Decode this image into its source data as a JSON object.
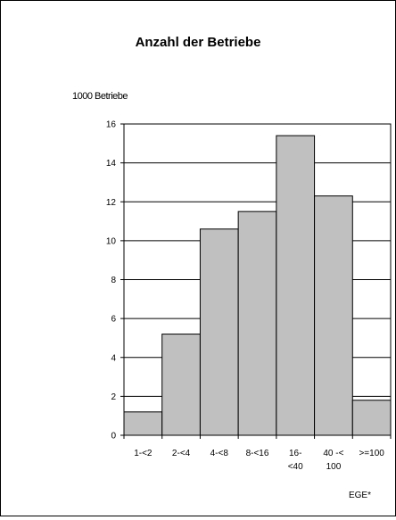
{
  "chart_data": {
    "type": "bar",
    "title": "Anzahl der Betriebe",
    "ylabel": "1000 Betriebe",
    "xlabel": "EGE*",
    "categories": [
      [
        "1-<2"
      ],
      [
        "2-<4"
      ],
      [
        "4-<8"
      ],
      [
        "8-<16"
      ],
      [
        "16-",
        "<40"
      ],
      [
        "40 -<",
        "100"
      ],
      [
        ">=100"
      ]
    ],
    "values": [
      1.2,
      5.2,
      10.6,
      11.5,
      15.4,
      12.3,
      1.8
    ],
    "ylim": [
      0,
      16
    ],
    "yticks": [
      0,
      2,
      4,
      6,
      8,
      10,
      12,
      14,
      16
    ],
    "grid": true,
    "bar_color": "#c0c0c0",
    "bar_edge_color": "#000000"
  }
}
